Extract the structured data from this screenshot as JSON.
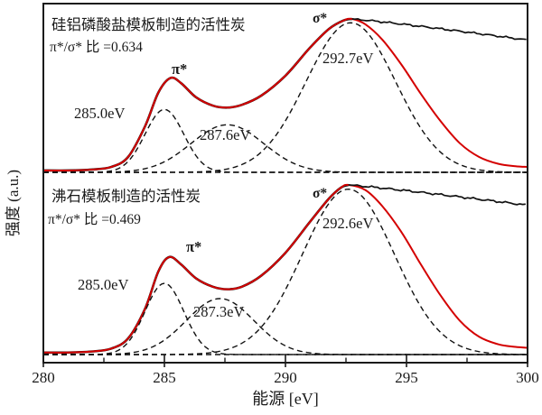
{
  "figure": {
    "xlabel": "能源 [eV]",
    "ylabel": "强度 (a.u.)"
  },
  "chart_data": {
    "type": "line",
    "title": "",
    "xlabel": "能源 [eV]",
    "ylabel": "强度 (a.u.)",
    "xlim": [
      280,
      300
    ],
    "x_major_ticks": [
      280,
      285,
      290,
      295,
      300
    ],
    "x_minor_ticks": [
      282.5,
      287.5,
      292.5,
      297.5
    ],
    "grid": false,
    "legend": "none",
    "colors": {
      "experimental_line": "#111111",
      "fit_line": "#d40000",
      "component_dashed": "#111111"
    },
    "panels": [
      {
        "sample_title": "硅铝磷酸盐模板制造的活性炭",
        "ratio_label": "π*/σ* 比 =0.634",
        "pi_sigma_ratio": 0.634,
        "pi_star_label": "π*",
        "sigma_star_label": "σ*",
        "component_peaks": [
          {
            "label": "285.0eV",
            "center_eV": 285.0,
            "amplitude": 0.41,
            "sigma_eV": 0.8
          },
          {
            "label": "287.6eV",
            "center_eV": 287.6,
            "amplitude": 0.31,
            "sigma_eV": 1.5
          },
          {
            "label": "292.7eV",
            "center_eV": 292.7,
            "amplitude": 0.975,
            "sigma_eV": 1.85
          }
        ],
        "fit_curve": [
          [
            280,
            0.012
          ],
          [
            281,
            0.012
          ],
          [
            282,
            0.018
          ],
          [
            282.8,
            0.035
          ],
          [
            283.5,
            0.1
          ],
          [
            284.2,
            0.3
          ],
          [
            284.75,
            0.52
          ],
          [
            285.25,
            0.615
          ],
          [
            285.7,
            0.58
          ],
          [
            286.3,
            0.49
          ],
          [
            287.0,
            0.435
          ],
          [
            287.6,
            0.422
          ],
          [
            288.2,
            0.44
          ],
          [
            289.0,
            0.5
          ],
          [
            290.0,
            0.63
          ],
          [
            291.0,
            0.81
          ],
          [
            291.8,
            0.935
          ],
          [
            292.4,
            0.99
          ],
          [
            292.75,
            1.0
          ],
          [
            293.3,
            0.965
          ],
          [
            294.0,
            0.865
          ],
          [
            294.8,
            0.7
          ],
          [
            295.6,
            0.51
          ],
          [
            296.4,
            0.335
          ],
          [
            297.2,
            0.19
          ],
          [
            298.0,
            0.1
          ],
          [
            298.8,
            0.055
          ],
          [
            299.5,
            0.04
          ],
          [
            300,
            0.035
          ]
        ],
        "post_edge_plateau": {
          "start_eV": 292.75,
          "end_eV": 300,
          "start_value": 1.0,
          "end_value": 0.862
        }
      },
      {
        "sample_title": "沸石模板制造的活性炭",
        "ratio_label": "π*/σ* 比 =0.469",
        "pi_sigma_ratio": 0.469,
        "pi_star_label": "π*",
        "sigma_star_label": "σ*",
        "component_peaks": [
          {
            "label": "285.0eV",
            "center_eV": 285.0,
            "amplitude": 0.42,
            "sigma_eV": 0.8
          },
          {
            "label": "287.3eV",
            "center_eV": 287.3,
            "amplitude": 0.33,
            "sigma_eV": 1.4
          },
          {
            "label": "292.6eV",
            "center_eV": 292.6,
            "amplitude": 0.975,
            "sigma_eV": 1.9
          }
        ],
        "fit_curve": [
          [
            280,
            0.012
          ],
          [
            281,
            0.012
          ],
          [
            282,
            0.018
          ],
          [
            282.8,
            0.035
          ],
          [
            283.5,
            0.095
          ],
          [
            284.2,
            0.27
          ],
          [
            284.75,
            0.49
          ],
          [
            285.2,
            0.575
          ],
          [
            285.7,
            0.53
          ],
          [
            286.3,
            0.45
          ],
          [
            287.0,
            0.4
          ],
          [
            287.6,
            0.385
          ],
          [
            288.2,
            0.4
          ],
          [
            289.0,
            0.465
          ],
          [
            290.0,
            0.6
          ],
          [
            291.0,
            0.78
          ],
          [
            291.8,
            0.92
          ],
          [
            292.3,
            0.985
          ],
          [
            292.6,
            1.0
          ],
          [
            293.3,
            0.97
          ],
          [
            294.0,
            0.875
          ],
          [
            294.8,
            0.72
          ],
          [
            295.6,
            0.53
          ],
          [
            296.4,
            0.35
          ],
          [
            297.2,
            0.2
          ],
          [
            298.0,
            0.105
          ],
          [
            298.8,
            0.06
          ],
          [
            299.5,
            0.045
          ],
          [
            300,
            0.04
          ]
        ],
        "post_edge_plateau": {
          "start_eV": 292.6,
          "end_eV": 300,
          "start_value": 1.0,
          "end_value": 0.88
        }
      }
    ]
  }
}
